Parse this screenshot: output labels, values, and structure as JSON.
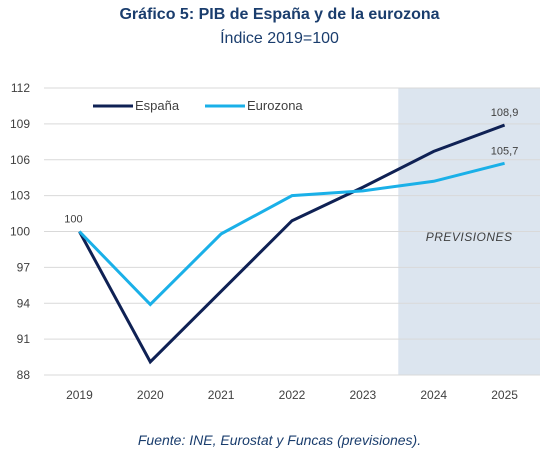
{
  "chart_data": {
    "type": "line",
    "title": "Gráfico 5: PIB de España y de la eurozona",
    "subtitle": "Índice 2019=100",
    "source": "Fuente: INE, Eurostat y Funcas (previsiones).",
    "xlabel": "",
    "ylabel": "",
    "categories": [
      "2019",
      "2020",
      "2021",
      "2022",
      "2023",
      "2024",
      "2025"
    ],
    "ylim": [
      88,
      112
    ],
    "yticks": [
      "88",
      "91",
      "94",
      "97",
      "100",
      "103",
      "106",
      "109",
      "112"
    ],
    "grid": "horizontal",
    "legend": "top-left",
    "forecast_region": {
      "from": "2024",
      "to": "2025",
      "label": "PREVISIONES"
    },
    "series": [
      {
        "name": "España",
        "color": "#0f2154",
        "values": [
          100,
          89.1,
          95.0,
          100.9,
          103.7,
          106.7,
          108.9
        ]
      },
      {
        "name": "Eurozona",
        "color": "#1ab0e8",
        "values": [
          100,
          93.9,
          99.8,
          103.0,
          103.4,
          104.2,
          105.7
        ]
      }
    ],
    "data_labels": [
      {
        "series": 0,
        "index": 0,
        "text": "100"
      },
      {
        "series": 0,
        "index": 6,
        "text": "108,9"
      },
      {
        "series": 1,
        "index": 6,
        "text": "105,7"
      }
    ]
  }
}
